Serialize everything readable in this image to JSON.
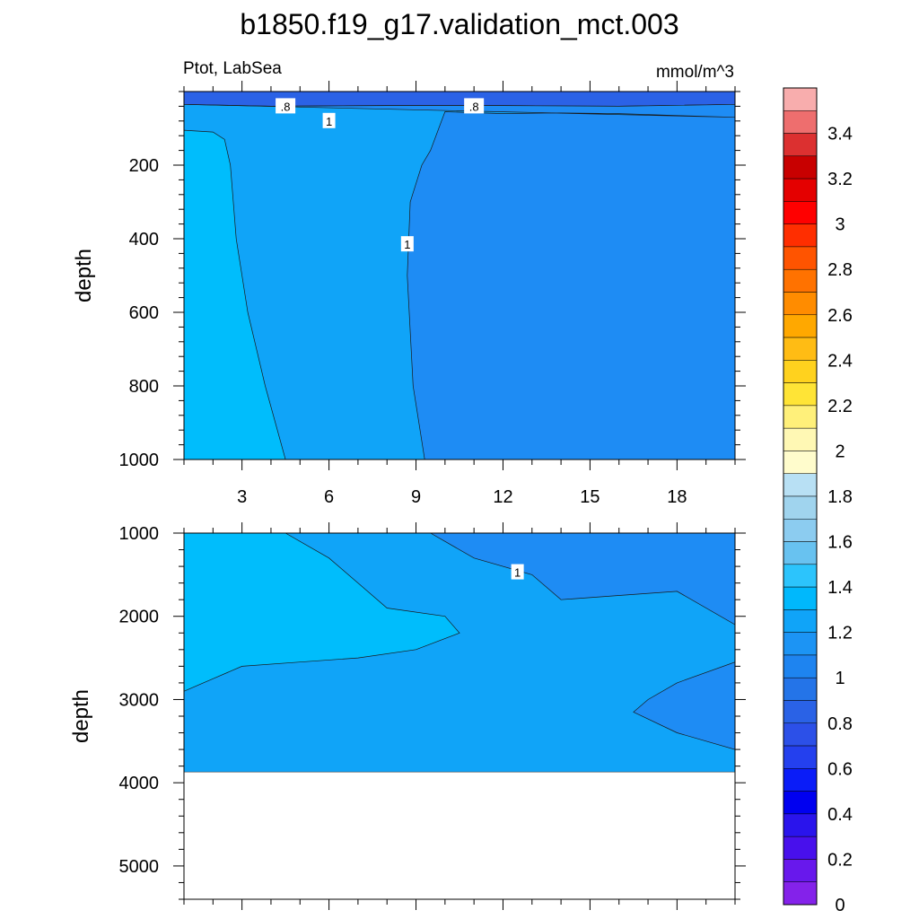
{
  "title": "b1850.f19_g17.validation_mct.003",
  "chart_data": {
    "type": "contour",
    "title": "b1850.f19_g17.validation_mct.003",
    "left_label": "Ptot, LabSea",
    "right_label": "mmol/m^3",
    "xlim": [
      1,
      20
    ],
    "x_ticks": [
      3,
      6,
      9,
      12,
      15,
      18
    ],
    "panels": [
      {
        "ylabel": "depth",
        "ylim": [
          0,
          1000
        ],
        "y_ticks": [
          200,
          400,
          600,
          800,
          1000
        ],
        "contour_labels": [
          {
            "text": ".8",
            "x": 4.5,
            "depth": 40
          },
          {
            "text": ".8",
            "x": 11.0,
            "depth": 40
          },
          {
            "text": "1",
            "x": 6.0,
            "depth": 80
          },
          {
            "text": "1",
            "x": 8.7,
            "depth": 415
          }
        ],
        "regions": [
          {
            "value_range": [
              1.0,
              1.1
            ],
            "color": "#10A4F8",
            "points": [
              [
                1,
                1000
              ],
              [
                20,
                1000
              ],
              [
                20,
                0
              ],
              [
                1,
                0
              ]
            ]
          },
          {
            "value_range": [
              0.8,
              0.9
            ],
            "color": "#2B62E6",
            "points": [
              [
                1,
                0
              ],
              [
                20,
                0
              ],
              [
                20,
                35
              ],
              [
                16,
                40
              ],
              [
                12,
                38
              ],
              [
                8,
                38
              ],
              [
                4,
                40
              ],
              [
                1,
                35
              ]
            ]
          },
          {
            "value_range": [
              0.9,
              1.0
            ],
            "color": "#1E8CF4",
            "points": [
              [
                1,
                35
              ],
              [
                4,
                40
              ],
              [
                8,
                38
              ],
              [
                12,
                38
              ],
              [
                16,
                40
              ],
              [
                20,
                35
              ],
              [
                20,
                45
              ],
              [
                20,
                70
              ],
              [
                18,
                65
              ],
              [
                16,
                60
              ],
              [
                14,
                58
              ],
              [
                12,
                60
              ],
              [
                10,
                55
              ],
              [
                9.5,
                160
              ],
              [
                9.2,
                200
              ],
              [
                8.8,
                300
              ],
              [
                8.7,
                500
              ],
              [
                8.9,
                800
              ],
              [
                9.3,
                1000
              ],
              [
                20,
                1000
              ],
              [
                20,
                70
              ]
            ]
          },
          {
            "value_range": [
              1.1,
              1.2
            ],
            "color": "#00BDFC",
            "points": [
              [
                1,
                105
              ],
              [
                2,
                110
              ],
              [
                2.4,
                130
              ],
              [
                2.6,
                200
              ],
              [
                2.8,
                400
              ],
              [
                3.2,
                600
              ],
              [
                3.8,
                800
              ],
              [
                4.5,
                1000
              ],
              [
                1,
                1000
              ]
            ]
          }
        ]
      },
      {
        "ylabel": "depth",
        "ylim": [
          1000,
          5400
        ],
        "y_ticks": [
          1000,
          2000,
          3000,
          4000,
          5000
        ],
        "ocean_bottom": 3870,
        "contour_labels": [
          {
            "text": "1",
            "x": 12.5,
            "depth": 1470
          }
        ],
        "regions": [
          {
            "value_range": [
              1.0,
              1.1
            ],
            "color": "#10A4F8",
            "points": [
              [
                1,
                1000
              ],
              [
                20,
                1000
              ],
              [
                20,
                3870
              ],
              [
                1,
                3870
              ]
            ]
          },
          {
            "value_range": [
              0.9,
              1.0
            ],
            "color": "#1E8CF4",
            "points": [
              [
                9.5,
                1000
              ],
              [
                11,
                1300
              ],
              [
                13,
                1500
              ],
              [
                14,
                1800
              ],
              [
                16,
                1750
              ],
              [
                18,
                1700
              ],
              [
                20,
                2100
              ],
              [
                20,
                1000
              ]
            ]
          },
          {
            "value_range": [
              0.9,
              1.0
            ],
            "color": "#1E8CF4",
            "points": [
              [
                20,
                2550
              ],
              [
                18,
                2800
              ],
              [
                17,
                3000
              ],
              [
                16.5,
                3150
              ],
              [
                18,
                3400
              ],
              [
                20,
                3600
              ]
            ]
          },
          {
            "value_range": [
              1.1,
              1.2
            ],
            "color": "#00BDFC",
            "points": [
              [
                1,
                1000
              ],
              [
                4.5,
                1000
              ],
              [
                6,
                1300
              ],
              [
                7,
                1600
              ],
              [
                8,
                1900
              ],
              [
                10,
                2000
              ],
              [
                10.5,
                2200
              ],
              [
                9,
                2400
              ],
              [
                7,
                2500
              ],
              [
                5,
                2550
              ],
              [
                3,
                2600
              ],
              [
                2,
                2750
              ],
              [
                1,
                2900
              ]
            ]
          }
        ]
      }
    ],
    "colorbar": {
      "labels": [
        "3.4",
        "3.2",
        "3",
        "2.8",
        "2.6",
        "2.4",
        "2.2",
        "2",
        "1.8",
        "1.6",
        "1.4",
        "1.2",
        "1",
        "0.8",
        "0.6",
        "0.4",
        "0.2",
        "0"
      ],
      "colors_top_to_bottom": [
        "#F8ADAD",
        "#EE6E6E",
        "#DC3030",
        "#C80000",
        "#E40000",
        "#FF0000",
        "#FF2E00",
        "#FF5400",
        "#FF7200",
        "#FF8C00",
        "#FFA800",
        "#FFBC14",
        "#FFD21E",
        "#FFE436",
        "#FFF07A",
        "#FFF8B4",
        "#FFFCCC",
        "#B8E0F4",
        "#A0D4EE",
        "#8CCCF0",
        "#68C2F0",
        "#2CC4FC",
        "#00B8FC",
        "#10A4F8",
        "#1C94F4",
        "#1E84F0",
        "#2474E8",
        "#2A62E6",
        "#2C50E8",
        "#2440EE",
        "#0A1CF8",
        "#0000F0",
        "#2A14EC",
        "#4810EC",
        "#6818EC",
        "#8422EA"
      ]
    }
  }
}
